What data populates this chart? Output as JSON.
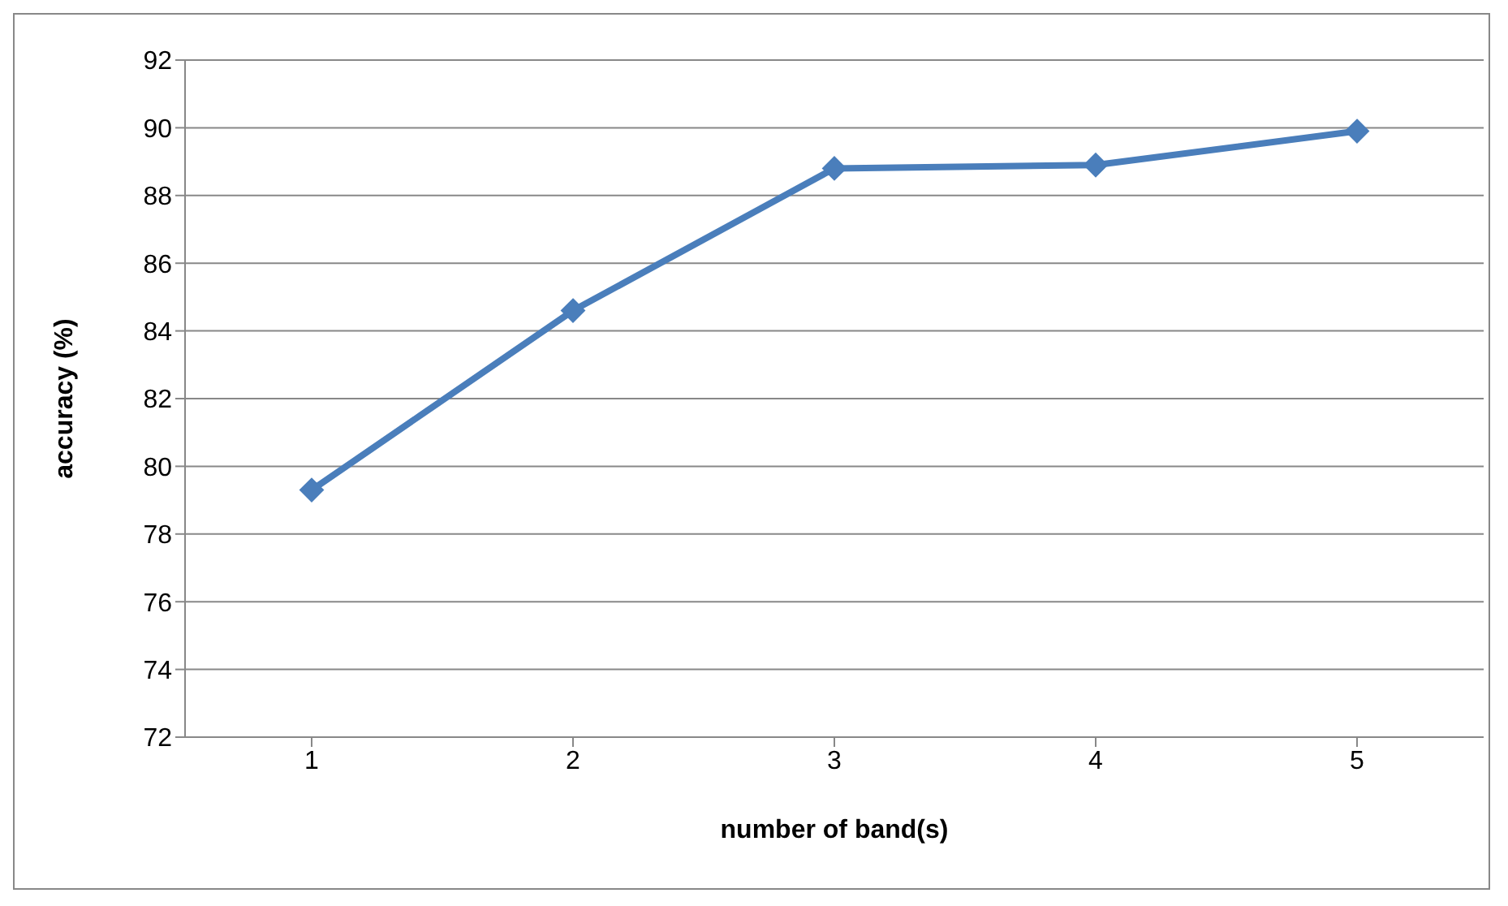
{
  "chart_data": {
    "type": "line",
    "xlabel": "number of band(s)",
    "ylabel": "accuracy (%)",
    "categories": [
      "1",
      "2",
      "3",
      "4",
      "5"
    ],
    "series": [
      {
        "color": "#4a7ebb",
        "values": [
          79.3,
          84.6,
          88.8,
          88.9,
          89.9
        ]
      }
    ],
    "ylim": [
      72,
      92
    ],
    "yticks": [
      72,
      74,
      76,
      78,
      80,
      82,
      84,
      86,
      88,
      90,
      92
    ],
    "grid": "y",
    "marker": "diamond",
    "line_style": "solid"
  }
}
